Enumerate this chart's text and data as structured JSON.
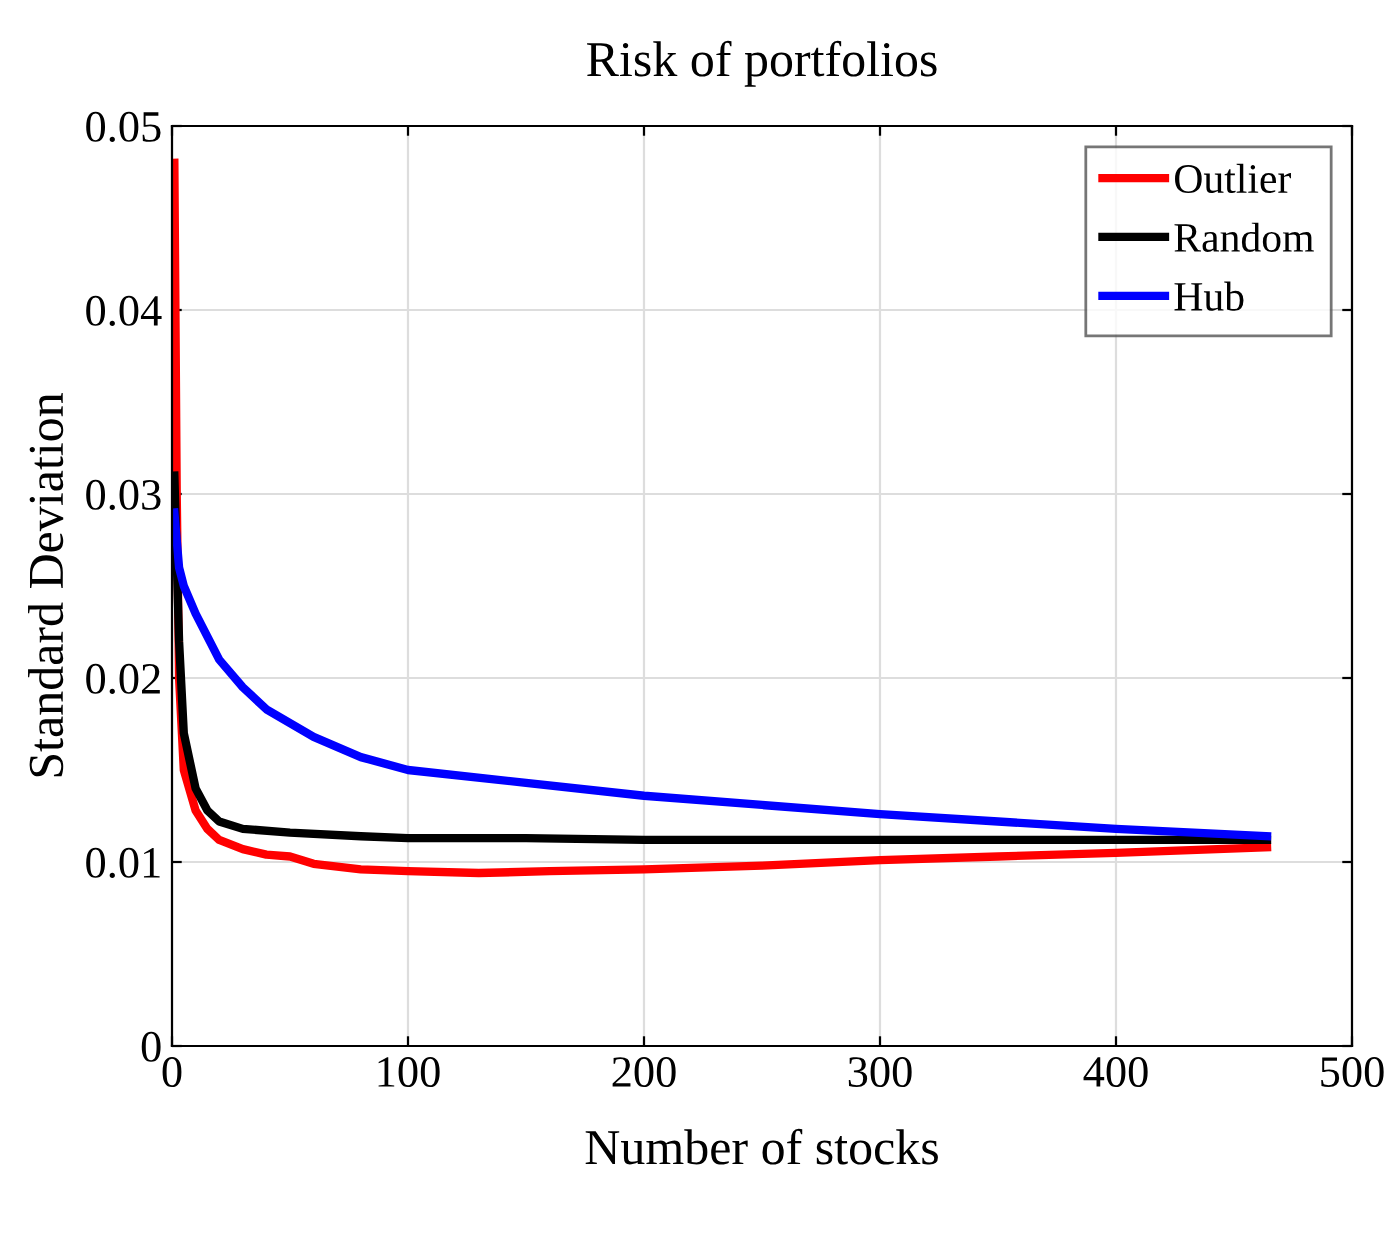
{
  "chart_data": {
    "type": "line",
    "title": "Risk of portfolios",
    "xlabel": "Number of stocks",
    "ylabel": "Standard Deviation",
    "xlim": [
      0,
      500
    ],
    "xticks": [
      0,
      100,
      200,
      300,
      400,
      500
    ],
    "ylim": [
      0,
      0.05
    ],
    "yticks": [
      0,
      0.01,
      0.02,
      0.03,
      0.04,
      0.05
    ],
    "grid": true,
    "legend": "top right",
    "series": [
      {
        "name": "Outlier",
        "color": "#ff0000",
        "x": [
          1,
          2,
          3,
          5,
          10,
          15,
          20,
          30,
          40,
          50,
          60,
          80,
          100,
          130,
          160,
          200,
          250,
          300,
          350,
          400,
          464
        ],
        "values": [
          0.048,
          0.03,
          0.02,
          0.015,
          0.0128,
          0.0118,
          0.0112,
          0.0107,
          0.0104,
          0.0103,
          0.0099,
          0.0096,
          0.0095,
          0.0094,
          0.0095,
          0.0096,
          0.0098,
          0.0101,
          0.0103,
          0.0105,
          0.0108
        ]
      },
      {
        "name": "Random",
        "color": "#000000",
        "x": [
          1,
          3,
          5,
          10,
          15,
          20,
          30,
          50,
          80,
          100,
          150,
          200,
          300,
          400,
          464
        ],
        "values": [
          0.031,
          0.022,
          0.017,
          0.014,
          0.0128,
          0.0122,
          0.0118,
          0.0116,
          0.0114,
          0.0113,
          0.0113,
          0.0112,
          0.0112,
          0.0112,
          0.0112
        ]
      },
      {
        "name": "Hub",
        "color": "#0000ff",
        "x": [
          1,
          3,
          5,
          10,
          20,
          30,
          40,
          60,
          80,
          100,
          150,
          200,
          250,
          300,
          350,
          400,
          464
        ],
        "values": [
          0.029,
          0.026,
          0.025,
          0.0235,
          0.021,
          0.0195,
          0.0183,
          0.0168,
          0.0157,
          0.015,
          0.0143,
          0.0136,
          0.0131,
          0.0126,
          0.0122,
          0.0118,
          0.0114
        ]
      }
    ]
  }
}
